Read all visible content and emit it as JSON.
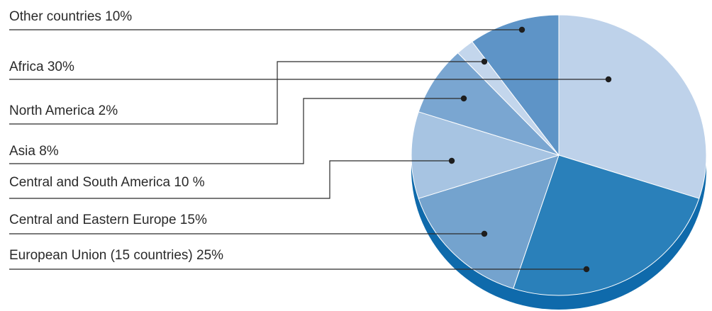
{
  "chart_data": {
    "type": "pie",
    "slices": [
      {
        "label": "Other countries 10%",
        "value": 10,
        "color": "#5e94c7"
      },
      {
        "label": "Africa 30%",
        "value": 30,
        "color": "#bed2ea"
      },
      {
        "label": "North America 2%",
        "value": 2,
        "color": "#c3d6ec"
      },
      {
        "label": "Asia 8%",
        "value": 8,
        "color": "#7aa6d1"
      },
      {
        "label": "Central and South America 10 %",
        "value": 10,
        "color": "#a7c4e2"
      },
      {
        "label": "Central and Eastern Europe 15%",
        "value": 15,
        "color": "#74a3ce"
      },
      {
        "label": "European Union (15 countries) 25%",
        "value": 25,
        "color": "#2a80ba"
      }
    ],
    "depth_color": "#0f6aab"
  }
}
